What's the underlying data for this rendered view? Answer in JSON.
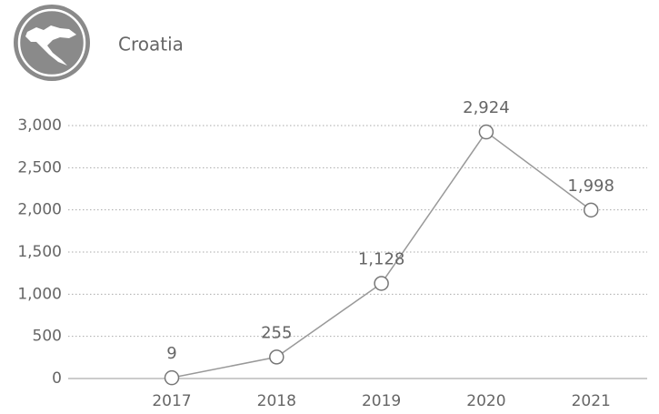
{
  "chart_data": {
    "type": "line",
    "title": "Croatia",
    "categories": [
      "2017",
      "2018",
      "2019",
      "2020",
      "2021"
    ],
    "values": [
      9,
      255,
      1128,
      2924,
      1998
    ],
    "value_labels": [
      "9",
      "255",
      "1,128",
      "2,924",
      "1,998"
    ],
    "color": "#999999",
    "ylim": [
      0,
      3000
    ],
    "yticks": [
      0,
      500,
      {
        "value": 1000,
        "label": "1,000"
      },
      {
        "value": 1500,
        "label": "1,500"
      },
      {
        "value": 2000,
        "label": "2,000"
      },
      {
        "value": 2500,
        "label": "2,500"
      },
      {
        "value": 3000,
        "label": "3,000"
      }
    ],
    "grid": true
  }
}
